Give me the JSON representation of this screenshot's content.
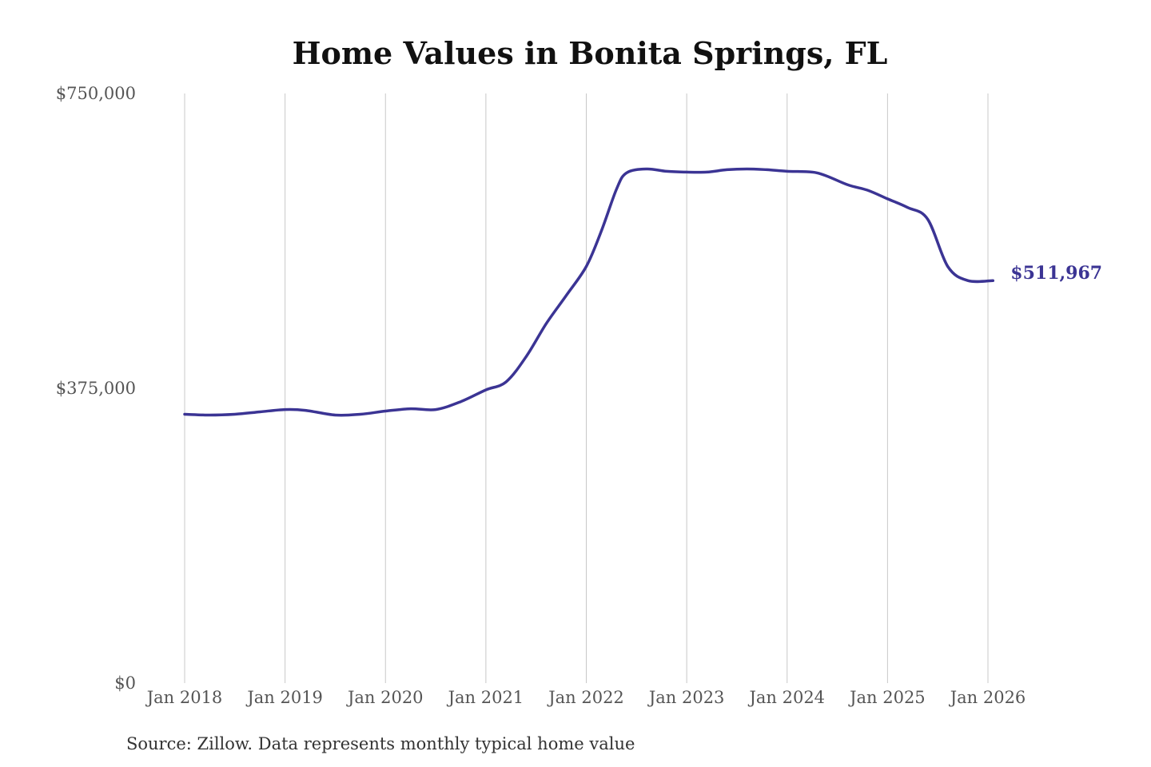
{
  "chart_data": {
    "type": "line",
    "title": "Home Values in Bonita Springs, FL",
    "source": "Source: Zillow. Data represents monthly typical home value",
    "series_color": "#3b3494",
    "ylim": [
      0,
      750000
    ],
    "yticks": [
      {
        "value": 0,
        "label": "$0"
      },
      {
        "value": 375000,
        "label": "$375,000"
      },
      {
        "value": 750000,
        "label": "$750,000"
      }
    ],
    "xlim": [
      2018.0,
      2026.0
    ],
    "xticks": [
      {
        "value": 2018,
        "label": "Jan 2018"
      },
      {
        "value": 2019,
        "label": "Jan 2019"
      },
      {
        "value": 2020,
        "label": "Jan 2020"
      },
      {
        "value": 2021,
        "label": "Jan 2021"
      },
      {
        "value": 2022,
        "label": "Jan 2022"
      },
      {
        "value": 2023,
        "label": "Jan 2023"
      },
      {
        "value": 2024,
        "label": "Jan 2024"
      },
      {
        "value": 2025,
        "label": "Jan 2025"
      },
      {
        "value": 2026,
        "label": "Jan 2026"
      }
    ],
    "grid": "vertical",
    "end_label": "$511,967",
    "series": [
      {
        "x": [
          2018.0,
          2018.25,
          2018.5,
          2018.75,
          2019.0,
          2019.2,
          2019.5,
          2019.75,
          2020.0,
          2020.25,
          2020.5,
          2020.75,
          2021.0,
          2021.2,
          2021.4,
          2021.6,
          2021.8,
          2022.0,
          2022.15,
          2022.3,
          2022.4,
          2022.6,
          2022.8,
          2023.0,
          2023.2,
          2023.4,
          2023.6,
          2023.8,
          2024.0,
          2024.3,
          2024.6,
          2024.8,
          2025.0,
          2025.2,
          2025.4,
          2025.6,
          2025.8,
          2026.05
        ],
        "values": [
          342000,
          341000,
          342000,
          345000,
          348000,
          347000,
          341000,
          342000,
          346000,
          349000,
          348000,
          358000,
          373000,
          383000,
          415000,
          457000,
          493000,
          530000,
          575000,
          628000,
          649000,
          654000,
          651000,
          650000,
          650000,
          653000,
          654000,
          653000,
          651000,
          649000,
          634000,
          627000,
          616000,
          605000,
          590000,
          530000,
          512000,
          511967
        ]
      }
    ]
  }
}
